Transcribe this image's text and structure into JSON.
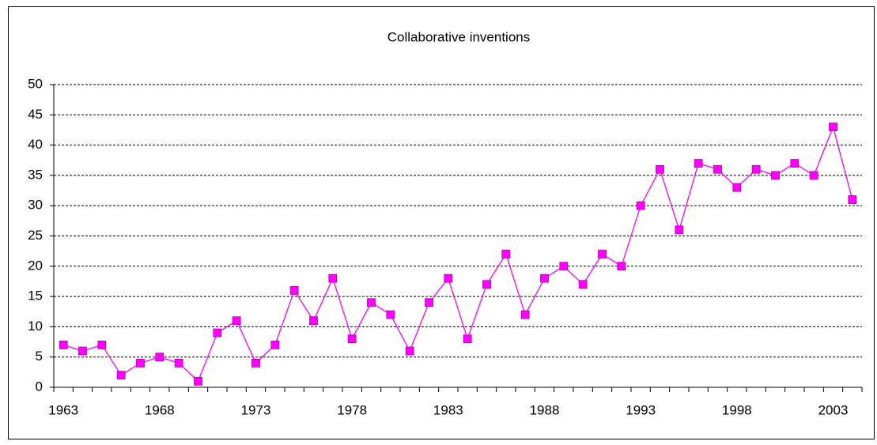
{
  "chart_data": {
    "type": "line",
    "title": "Collaborative inventions",
    "categories": [
      1963,
      null,
      null,
      null,
      null,
      1968,
      null,
      null,
      null,
      null,
      1973,
      null,
      null,
      null,
      null,
      1978,
      null,
      null,
      null,
      null,
      1983,
      null,
      null,
      null,
      null,
      1988,
      null,
      null,
      null,
      null,
      1993,
      null,
      null,
      null,
      null,
      1998,
      null,
      null,
      null,
      null,
      2003,
      null
    ],
    "values": [
      7,
      6,
      7,
      2,
      4,
      5,
      4,
      1,
      9,
      11,
      4,
      7,
      16,
      11,
      18,
      8,
      14,
      12,
      6,
      14,
      18,
      8,
      17,
      22,
      12,
      18,
      20,
      17,
      22,
      20,
      30,
      36,
      26,
      37,
      36,
      33,
      36,
      35,
      37,
      35,
      43,
      31
    ],
    "color": "#ff00ff",
    "ylim": [
      0,
      50
    ],
    "yticks": [
      0,
      5,
      10,
      15,
      20,
      25,
      30,
      35,
      40,
      45,
      50
    ],
    "grid": true
  }
}
